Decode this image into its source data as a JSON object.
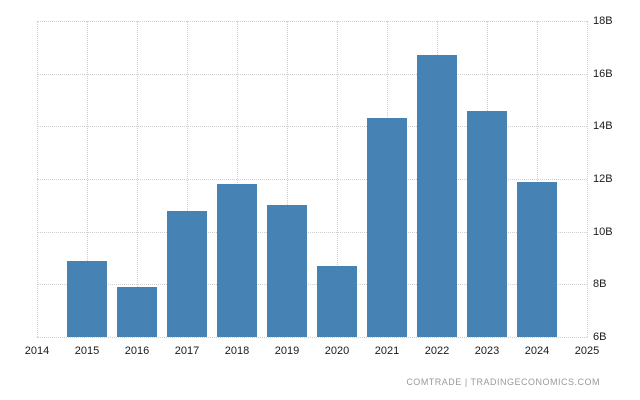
{
  "chart_data": {
    "type": "bar",
    "title": "",
    "xlabel": "",
    "ylabel": "",
    "unit": "B",
    "categories": [
      2015,
      2016,
      2017,
      2018,
      2019,
      2020,
      2021,
      2022,
      2023,
      2024
    ],
    "values": [
      8.9,
      7.9,
      10.8,
      11.8,
      11.0,
      8.7,
      14.3,
      16.7,
      14.6,
      11.9
    ],
    "xlim": [
      2014,
      2025
    ],
    "ylim": [
      6,
      18
    ],
    "x_ticks": [
      2014,
      2015,
      2016,
      2017,
      2018,
      2019,
      2020,
      2021,
      2022,
      2023,
      2024,
      2025
    ],
    "y_ticks": [
      6,
      8,
      10,
      12,
      14,
      16,
      18
    ],
    "y_tick_labels": [
      "6B",
      "8B",
      "10B",
      "12B",
      "14B",
      "16B",
      "18B"
    ],
    "grid": "dotted-both-axes",
    "legend": "none",
    "y_axis_side": "right"
  },
  "colors": {
    "bar": "#4782b4",
    "grid": "#cfcfcf",
    "axis_text": "#1a1a1a",
    "attribution_text": "#9a9a9a",
    "background": "#ffffff"
  },
  "footer": {
    "attribution": "COMTRADE | TRADINGECONOMICS.COM"
  }
}
